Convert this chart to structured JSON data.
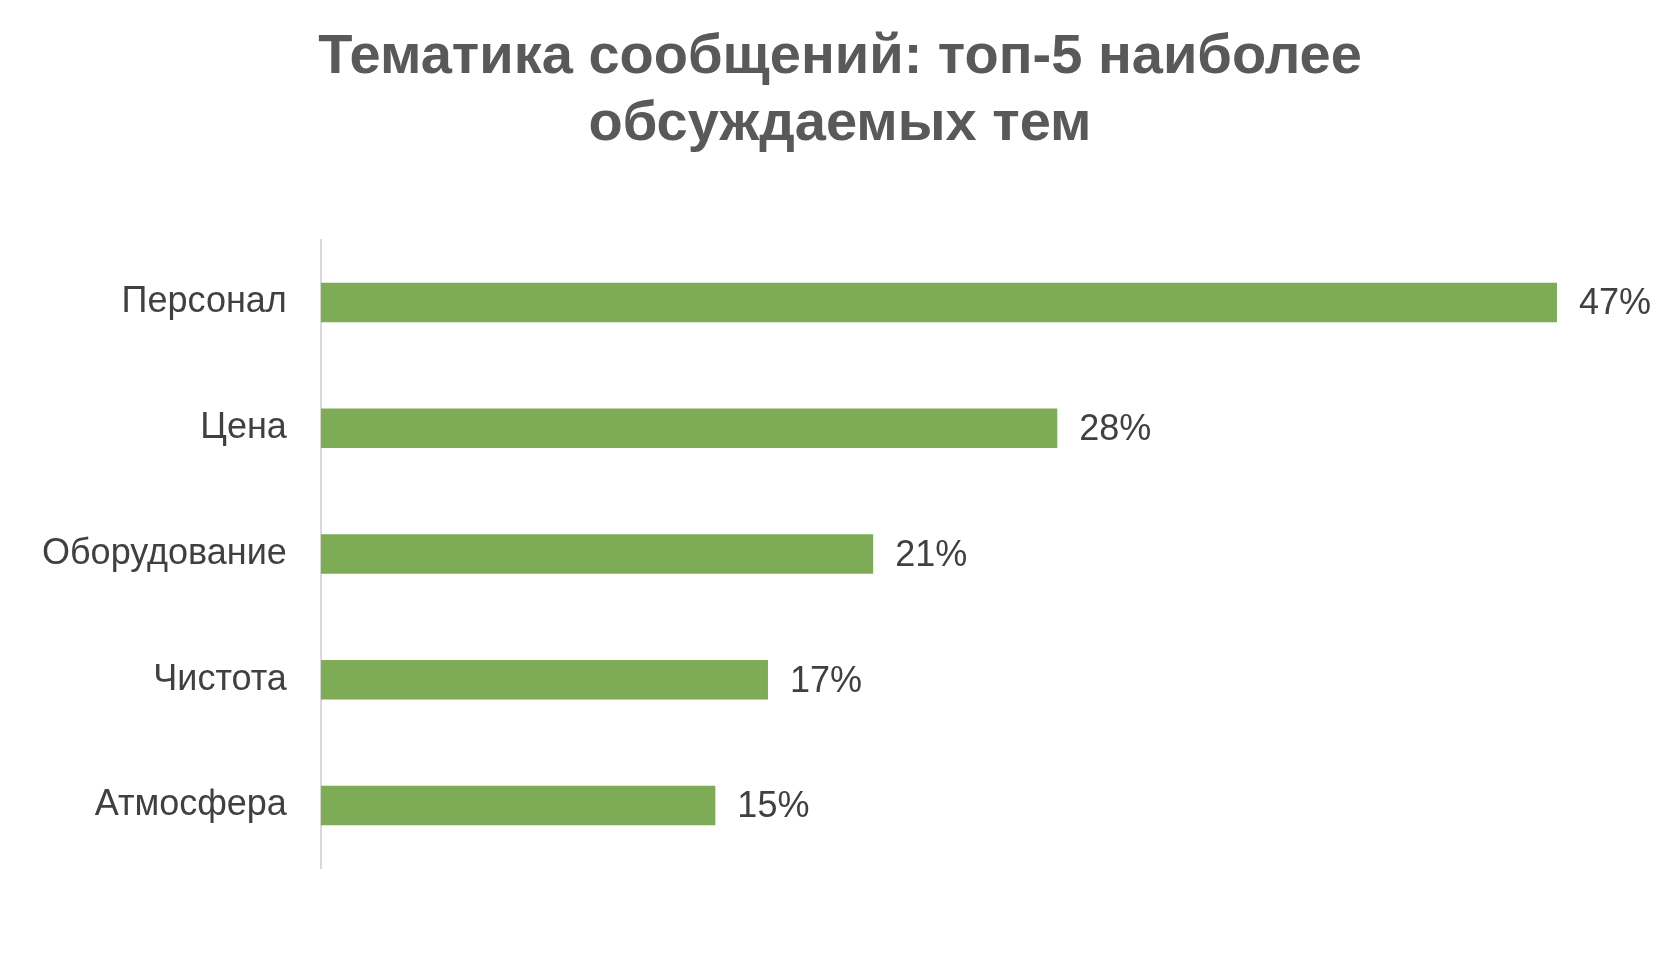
{
  "chart_data": {
    "type": "bar",
    "orientation": "horizontal",
    "title": "Тематика сообщений: топ-5 наиболее обсуждаемых тем",
    "categories": [
      "Персонал",
      "Цена",
      "Оборудование",
      "Чистота",
      "Атмосфера"
    ],
    "values": [
      47,
      28,
      21,
      17,
      15
    ],
    "value_labels": [
      "47%",
      "28%",
      "21%",
      "17%",
      "15%"
    ],
    "color": "#7eab55",
    "grid": false,
    "legend": false,
    "tick_labels": "y"
  }
}
